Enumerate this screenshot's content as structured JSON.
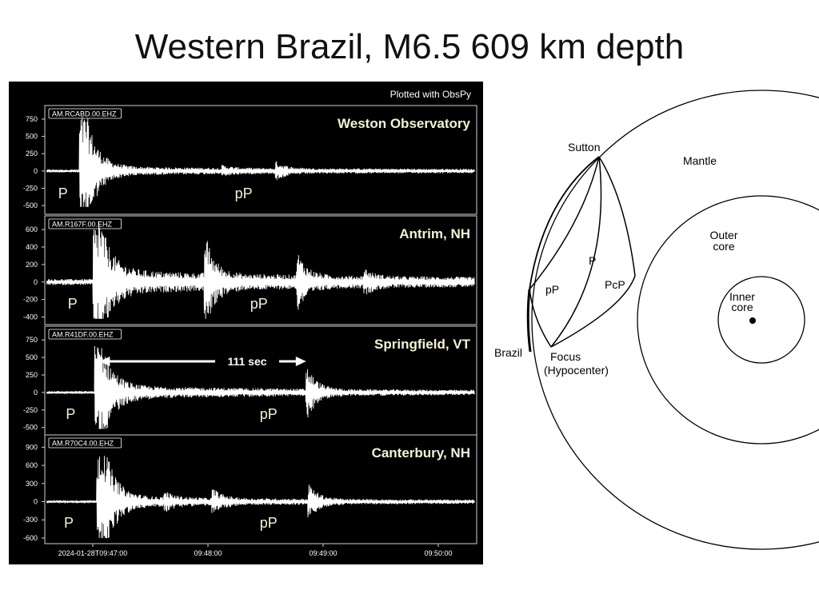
{
  "slide": {
    "title": "Western Brazil, M6.5 609 km depth"
  },
  "chart_data": {
    "type": "line",
    "credit": "Plotted with ObsPy",
    "x_tick_labels": [
      "2024-01-28T09:47:00",
      "09:48:00",
      "09:49:00",
      "09:50:00"
    ],
    "x_ticks_seconds": [
      0,
      60,
      120,
      180
    ],
    "xlim_seconds": [
      -25,
      200
    ],
    "grid": false,
    "annotation": {
      "panel": 2,
      "label": "111 sec",
      "from_seconds": 1,
      "to_seconds": 112
    },
    "panels": [
      {
        "channel": "AM.RCABD.00.EHZ",
        "station": "Weston Observatory",
        "yticks": [
          750,
          500,
          250,
          0,
          -250,
          -500
        ],
        "ylim": [
          -580,
          900
        ],
        "p_time": -7,
        "pp_time": 96,
        "peak": 880,
        "trough": -520,
        "noise": 22,
        "coda": 45,
        "bursts": [
          {
            "t": 96,
            "a": 100
          },
          {
            "t": 68,
            "a": 40
          }
        ],
        "phase_labels": [
          {
            "text": "P",
            "t": -18
          },
          {
            "text": "pP",
            "t": 74
          }
        ]
      },
      {
        "channel": "AM.R167F.00.EHZ",
        "station": "Antrim, NH",
        "yticks": [
          600,
          400,
          200,
          0,
          -200,
          -400
        ],
        "ylim": [
          -450,
          720
        ],
        "p_time": 0,
        "pp_time": 107,
        "peak": 700,
        "trough": -420,
        "noise": 35,
        "coda": 110,
        "bursts": [
          {
            "t": 107,
            "a": 260
          },
          {
            "t": 59,
            "a": 430
          },
          {
            "t": 142,
            "a": 90
          }
        ],
        "phase_labels": [
          {
            "text": "P",
            "t": -13
          },
          {
            "text": "pP",
            "t": 82
          }
        ]
      },
      {
        "channel": "AM.R41DF.00.EHZ",
        "station": "Springfield, VT",
        "yticks": [
          750,
          500,
          250,
          0,
          -250,
          -500
        ],
        "ylim": [
          -560,
          900
        ],
        "p_time": 1,
        "pp_time": 112,
        "peak": 760,
        "trough": -520,
        "noise": 20,
        "coda": 80,
        "bursts": [
          {
            "t": 112,
            "a": 320
          }
        ],
        "phase_labels": [
          {
            "text": "P",
            "t": -14
          },
          {
            "text": "pP",
            "t": 87
          }
        ]
      },
      {
        "channel": "AM.R70C4.00.EHZ",
        "station": "Canterbury, NH",
        "yticks": [
          900,
          600,
          300,
          0,
          -300,
          -600
        ],
        "ylim": [
          -640,
          1050
        ],
        "p_time": 2,
        "pp_time": 113,
        "peak": 1040,
        "trough": -600,
        "noise": 18,
        "coda": 75,
        "bursts": [
          {
            "t": 113,
            "a": 240
          },
          {
            "t": 63,
            "a": 160
          },
          {
            "t": 38,
            "a": 100
          }
        ],
        "phase_labels": [
          {
            "text": "P",
            "t": -15
          },
          {
            "text": "pP",
            "t": 87
          }
        ]
      }
    ]
  },
  "diagram": {
    "layers": {
      "mantle": "Mantle",
      "outer_core_1": "Outer",
      "outer_core_2": "core",
      "inner_core_1": "Inner",
      "inner_core_2": "core"
    },
    "places": {
      "station": "Sutton",
      "source_region": "Brazil",
      "focus_1": "Focus",
      "focus_2": "(Hypocenter)"
    },
    "rays": {
      "direct": "P",
      "depth_phase": "pP",
      "core_reflection": "PcP"
    }
  }
}
